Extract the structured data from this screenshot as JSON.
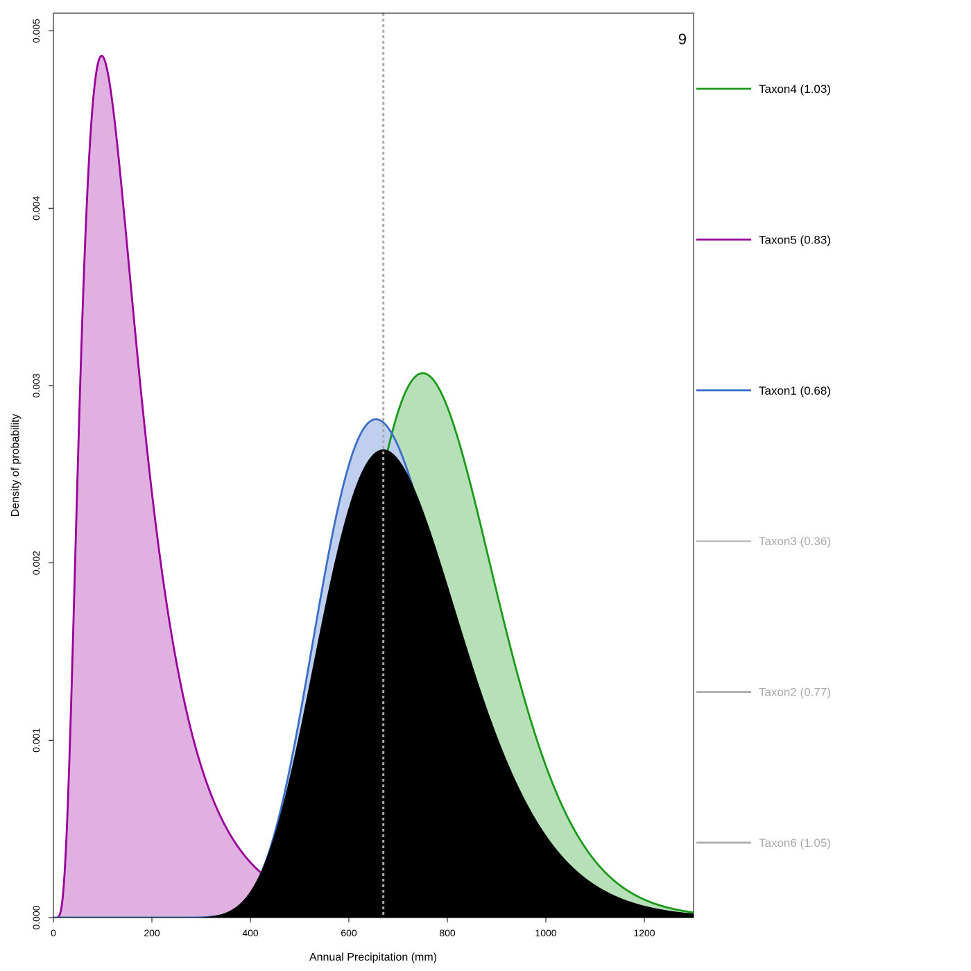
{
  "chart_data": {
    "type": "area",
    "xlabel": "Annual Precipitation (mm)",
    "ylabel": "Density of probability",
    "xlim": [
      0,
      1300
    ],
    "ylim": [
      0,
      0.0051
    ],
    "x_ticks": [
      0,
      200,
      400,
      600,
      800,
      1000,
      1200
    ],
    "x_tick_labels": [
      "0",
      "200",
      "400",
      "600",
      "800",
      "1000",
      "1200"
    ],
    "y_ticks": [
      0,
      0.001,
      0.002,
      0.003,
      0.004,
      0.005
    ],
    "y_tick_labels": [
      "0.000",
      "0.001",
      "0.002",
      "0.003",
      "0.004",
      "0.005"
    ],
    "panel_label": "9",
    "reference_line": {
      "x": 670,
      "style": "dotted",
      "color": "#aaaaaa"
    },
    "grid": false,
    "legend_position": "right",
    "series": [
      {
        "name": "Taxon4 (1.03)",
        "distribution": "lognormal",
        "peak_x": 750,
        "peak_y": 0.00307,
        "sdlog": 0.18,
        "line_color": "#1a9a1a",
        "fill_color": "#b8e0b8",
        "active": true
      },
      {
        "name": "Taxon5 (0.83)",
        "distribution": "lognormal",
        "peak_x": 98,
        "peak_y": 0.00486,
        "sdlog": 0.6,
        "line_color": "#990099",
        "fill_color": "#e0b0e0",
        "active": true
      },
      {
        "name": "Taxon1 (0.68)",
        "distribution": "lognormal",
        "peak_x": 655,
        "peak_y": 0.00281,
        "sdlog": 0.2,
        "line_color": "#3a6ec8",
        "fill_color": "#c0cfee",
        "active": true
      },
      {
        "name": "Taxon3 (0.36)",
        "line_color": "#aaaaaa",
        "active": false
      },
      {
        "name": "Taxon2 (0.77)",
        "line_color": "#aaaaaa",
        "active": false
      },
      {
        "name": "Taxon6 (1.05)",
        "line_color": "#aaaaaa",
        "active": false
      }
    ],
    "combined": {
      "peak_x": 670,
      "peak_y": 0.00264,
      "sdlog": 0.215,
      "fill_color": "#000000"
    }
  }
}
